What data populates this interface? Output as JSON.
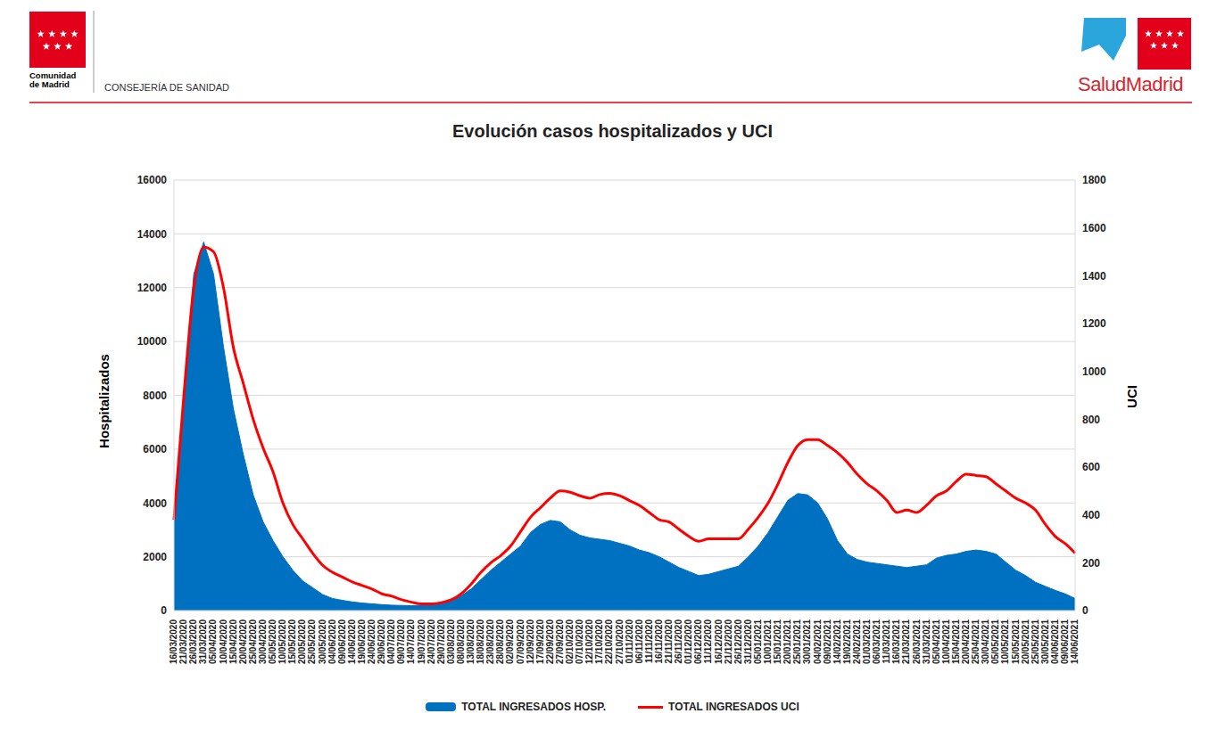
{
  "header": {
    "left_logo_text": [
      "Comunidad",
      "de Madrid"
    ],
    "department": "CONSEJERÍA DE SANIDAD",
    "right_logo_text": "SaludMadrid"
  },
  "chart_data": {
    "type": "area",
    "title": "Evolución casos hospitalizados y UCI",
    "y_label": "Hospitalizados",
    "y2_label": "UCI",
    "categories": [
      "16/03/2020",
      "21/03/2020",
      "26/03/2020",
      "31/03/2020",
      "05/04/2020",
      "10/04/2020",
      "15/04/2020",
      "20/04/2020",
      "25/04/2020",
      "30/04/2020",
      "05/05/2020",
      "10/05/2020",
      "15/05/2020",
      "20/05/2020",
      "25/05/2020",
      "30/05/2020",
      "04/06/2020",
      "09/06/2020",
      "14/06/2020",
      "19/06/2020",
      "24/06/2020",
      "29/06/2020",
      "04/07/2020",
      "09/07/2020",
      "14/07/2020",
      "19/07/2020",
      "24/07/2020",
      "29/07/2020",
      "03/08/2020",
      "08/08/2020",
      "13/08/2020",
      "18/08/2020",
      "23/08/2020",
      "28/08/2020",
      "02/09/2020",
      "07/09/2020",
      "12/09/2020",
      "17/09/2020",
      "22/09/2020",
      "27/09/2020",
      "02/10/2020",
      "07/10/2020",
      "12/10/2020",
      "17/10/2020",
      "22/10/2020",
      "27/10/2020",
      "01/11/2020",
      "06/11/2020",
      "11/11/2020",
      "16/11/2020",
      "21/11/2020",
      "26/11/2020",
      "01/12/2020",
      "06/12/2020",
      "11/12/2020",
      "16/12/2020",
      "21/12/2020",
      "26/12/2020",
      "31/12/2020",
      "05/01/2021",
      "10/01/2021",
      "15/01/2021",
      "20/01/2021",
      "25/01/2021",
      "30/01/2021",
      "04/02/2021",
      "09/02/2021",
      "14/02/2021",
      "19/02/2021",
      "24/02/2021",
      "01/03/2021",
      "06/03/2021",
      "11/03/2021",
      "16/03/2021",
      "21/03/2021",
      "26/03/2021",
      "31/03/2021",
      "05/04/2021",
      "10/04/2021",
      "15/04/2021",
      "20/04/2021",
      "25/04/2021",
      "30/04/2021",
      "05/05/2021",
      "10/05/2021",
      "15/05/2021",
      "20/05/2021",
      "25/05/2021",
      "30/05/2021",
      "04/06/2021",
      "09/06/2021",
      "14/06/2021"
    ],
    "series": [
      {
        "name": "TOTAL INGRESADOS HOSP.",
        "type": "area",
        "color": "#0070c0",
        "values": [
          3500,
          8000,
          12500,
          13700,
          12500,
          9800,
          7500,
          5800,
          4300,
          3300,
          2600,
          2000,
          1500,
          1100,
          850,
          600,
          450,
          380,
          320,
          280,
          250,
          220,
          200,
          190,
          180,
          200,
          220,
          280,
          380,
          550,
          800,
          1150,
          1500,
          1800,
          2100,
          2400,
          2900,
          3200,
          3350,
          3300,
          3000,
          2800,
          2700,
          2650,
          2600,
          2500,
          2400,
          2250,
          2150,
          2000,
          1800,
          1600,
          1450,
          1300,
          1350,
          1450,
          1550,
          1650,
          2000,
          2400,
          2900,
          3500,
          4100,
          4350,
          4300,
          4000,
          3400,
          2600,
          2100,
          1900,
          1800,
          1750,
          1700,
          1650,
          1600,
          1650,
          1700,
          1950,
          2050,
          2100,
          2200,
          2250,
          2200,
          2100,
          1800,
          1500,
          1300,
          1050,
          900,
          750,
          620,
          450
        ]
      },
      {
        "name": "TOTAL INGRESADOS UCI",
        "type": "line",
        "color": "#ff0000",
        "axis": "y2",
        "values": [
          380,
          900,
          1350,
          1520,
          1500,
          1350,
          1100,
          950,
          800,
          680,
          580,
          450,
          360,
          300,
          240,
          190,
          160,
          140,
          120,
          105,
          90,
          70,
          60,
          45,
          35,
          28,
          28,
          33,
          45,
          70,
          110,
          160,
          200,
          230,
          270,
          330,
          390,
          430,
          470,
          500,
          495,
          480,
          470,
          485,
          490,
          480,
          460,
          440,
          410,
          380,
          370,
          340,
          310,
          290,
          300,
          300,
          300,
          300,
          340,
          390,
          450,
          530,
          620,
          690,
          715,
          715,
          690,
          660,
          620,
          570,
          530,
          500,
          460,
          410,
          420,
          410,
          440,
          480,
          500,
          540,
          570,
          565,
          560,
          530,
          500,
          470,
          450,
          420,
          360,
          310,
          280,
          240
        ]
      }
    ],
    "ylim": [
      0,
      16000
    ],
    "yticks": [
      0,
      2000,
      4000,
      6000,
      8000,
      10000,
      12000,
      14000,
      16000
    ],
    "y2lim": [
      0,
      1800
    ],
    "y2ticks": [
      0,
      200,
      400,
      600,
      800,
      1000,
      1200,
      1400,
      1600,
      1800
    ],
    "grid": true,
    "legend": "bottom"
  }
}
